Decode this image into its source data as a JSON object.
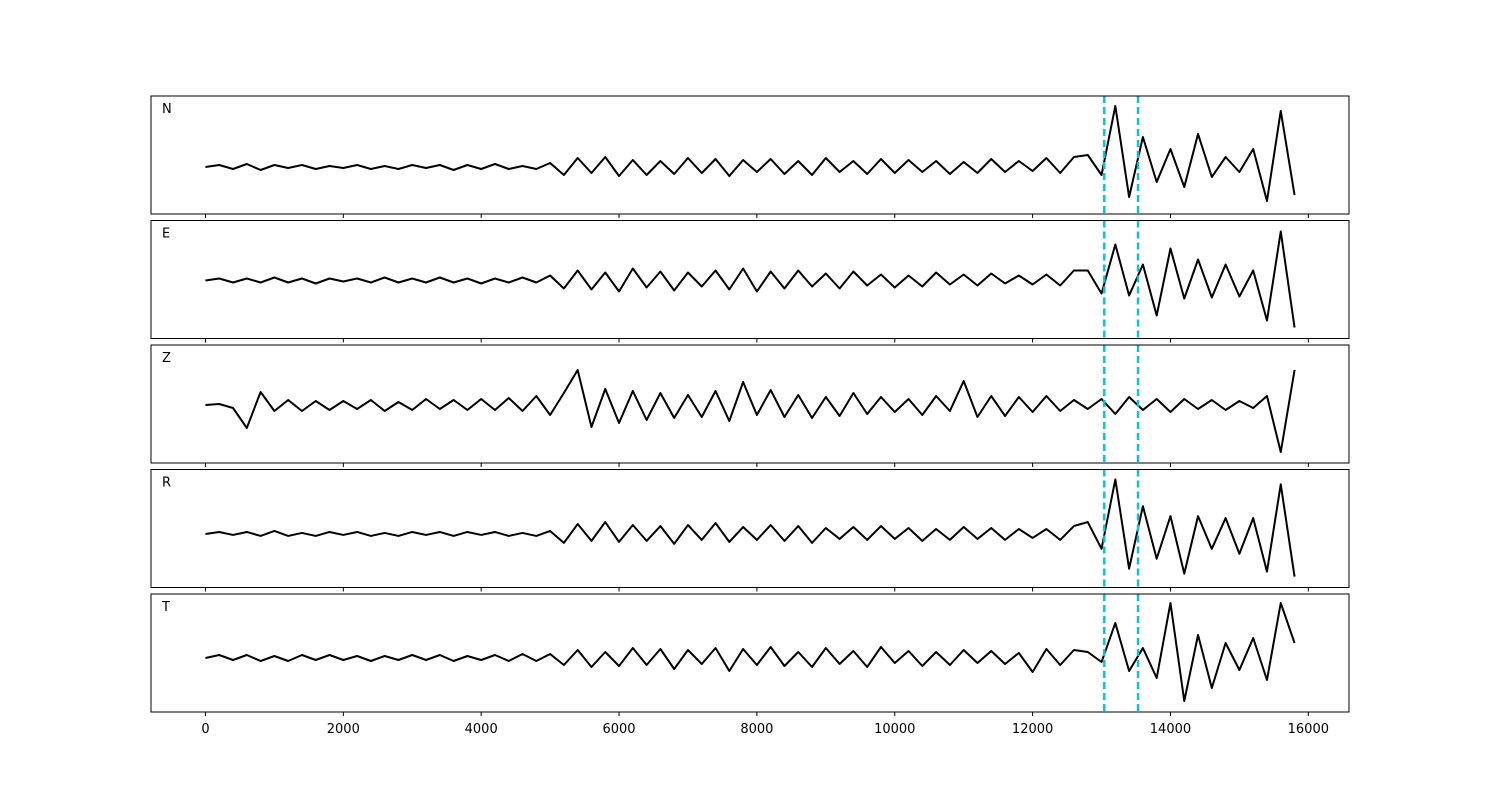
{
  "chart_data": {
    "type": "line",
    "x": [
      0,
      200,
      400,
      600,
      800,
      1000,
      1200,
      1400,
      1600,
      1800,
      2000,
      2200,
      2400,
      2600,
      2800,
      3000,
      3200,
      3400,
      3600,
      3800,
      4000,
      4200,
      4400,
      4600,
      4800,
      5000,
      5200,
      5400,
      5600,
      5800,
      6000,
      6200,
      6400,
      6600,
      6800,
      7000,
      7200,
      7400,
      7600,
      7800,
      8000,
      8200,
      8400,
      8600,
      8800,
      9000,
      9200,
      9400,
      9600,
      9800,
      10000,
      10200,
      10400,
      10600,
      10800,
      11000,
      11200,
      11400,
      11600,
      11800,
      12000,
      12200,
      12400,
      12600,
      12800,
      13000,
      13200,
      13400,
      13600,
      13800,
      14000,
      14200,
      14400,
      14600,
      14800,
      15000,
      15200,
      15400,
      15600,
      15800
    ],
    "xlim": [
      -790,
      16590
    ],
    "xticks": [
      0,
      2000,
      4000,
      6000,
      8000,
      10000,
      12000,
      14000,
      16000
    ],
    "vlines": [
      13040,
      13530
    ],
    "vline_color": "#17becf",
    "series": [
      {
        "name": "N",
        "color": "#000000",
        "ylim": [
          -4.7,
          7.1
        ],
        "values": [
          0,
          0.2,
          -0.2,
          0.3,
          -0.3,
          0.2,
          -0.1,
          0.2,
          -0.2,
          0.1,
          -0.1,
          0.2,
          -0.2,
          0.1,
          -0.2,
          0.2,
          -0.1,
          0.2,
          -0.3,
          0.2,
          -0.2,
          0.3,
          -0.2,
          0.1,
          -0.2,
          0.4,
          -0.8,
          0.9,
          -0.6,
          1.0,
          -0.9,
          0.7,
          -0.8,
          0.6,
          -0.7,
          0.9,
          -0.6,
          0.8,
          -0.9,
          0.7,
          -0.5,
          0.8,
          -0.7,
          0.6,
          -0.8,
          0.9,
          -0.5,
          0.6,
          -0.7,
          0.8,
          -0.6,
          0.7,
          -0.5,
          0.6,
          -0.7,
          0.5,
          -0.6,
          0.8,
          -0.5,
          0.6,
          -0.4,
          0.9,
          -0.6,
          1.0,
          1.2,
          -0.8,
          6.1,
          -3.0,
          3.0,
          -1.5,
          1.8,
          -2.0,
          3.3,
          -1.0,
          1.0,
          -0.5,
          1.8,
          -3.4,
          5.6,
          -2.8
        ]
      },
      {
        "name": "E",
        "color": "#000000",
        "ylim": [
          -5.8,
          6.0
        ],
        "values": [
          0,
          0.2,
          -0.2,
          0.2,
          -0.2,
          0.3,
          -0.2,
          0.2,
          -0.3,
          0.2,
          -0.1,
          0.2,
          -0.2,
          0.3,
          -0.2,
          0.2,
          -0.2,
          0.3,
          -0.2,
          0.2,
          -0.3,
          0.2,
          -0.2,
          0.3,
          -0.2,
          0.5,
          -0.8,
          1.0,
          -0.9,
          0.8,
          -1.1,
          1.2,
          -0.7,
          0.9,
          -1.0,
          0.8,
          -0.6,
          1.0,
          -0.9,
          1.2,
          -1.1,
          0.9,
          -0.8,
          1.0,
          -0.6,
          0.7,
          -0.8,
          0.9,
          -0.5,
          0.6,
          -0.7,
          0.5,
          -0.6,
          0.8,
          -0.4,
          0.6,
          -0.5,
          0.7,
          -0.3,
          0.5,
          -0.4,
          0.6,
          -0.5,
          1.0,
          1.0,
          -1.3,
          3.6,
          -1.5,
          1.6,
          -3.5,
          3.2,
          -1.8,
          2.1,
          -1.7,
          1.6,
          -1.6,
          1.0,
          -4.0,
          4.9,
          -4.7
        ]
      },
      {
        "name": "Z",
        "color": "#000000",
        "ylim": [
          -5.8,
          6.0
        ],
        "values": [
          0,
          0.1,
          -0.3,
          -2.3,
          1.3,
          -0.6,
          0.5,
          -0.6,
          0.4,
          -0.5,
          0.4,
          -0.4,
          0.5,
          -0.6,
          0.3,
          -0.5,
          0.6,
          -0.4,
          0.5,
          -0.5,
          0.6,
          -0.5,
          0.7,
          -0.6,
          0.9,
          -1.0,
          1.2,
          3.5,
          -2.2,
          1.6,
          -1.8,
          1.4,
          -1.5,
          1.2,
          -1.3,
          1.0,
          -1.2,
          1.4,
          -1.6,
          2.3,
          -1.0,
          1.5,
          -1.2,
          1.0,
          -1.3,
          0.8,
          -1.1,
          1.2,
          -0.9,
          0.8,
          -0.7,
          0.6,
          -1.0,
          0.9,
          -0.6,
          2.4,
          -1.2,
          0.9,
          -1.1,
          0.8,
          -0.7,
          0.9,
          -0.6,
          0.5,
          -0.4,
          0.6,
          -0.9,
          0.8,
          -0.5,
          0.6,
          -0.7,
          0.6,
          -0.4,
          0.5,
          -0.5,
          0.4,
          -0.3,
          0.9,
          -4.7,
          3.5
        ]
      },
      {
        "name": "R",
        "color": "#000000",
        "ylim": [
          -5.4,
          6.5
        ],
        "values": [
          0,
          0.2,
          -0.1,
          0.2,
          -0.2,
          0.3,
          -0.2,
          0.1,
          -0.2,
          0.2,
          -0.1,
          0.2,
          -0.2,
          0.1,
          -0.2,
          0.2,
          -0.1,
          0.2,
          -0.2,
          0.2,
          -0.1,
          0.2,
          -0.2,
          0.1,
          -0.2,
          0.3,
          -0.9,
          1.0,
          -0.7,
          1.2,
          -0.8,
          0.9,
          -0.7,
          0.8,
          -1.0,
          0.9,
          -0.6,
          1.1,
          -0.8,
          0.7,
          -0.6,
          0.9,
          -0.7,
          0.8,
          -0.9,
          0.6,
          -0.5,
          0.7,
          -0.6,
          0.8,
          -0.5,
          0.6,
          -0.7,
          0.5,
          -0.6,
          0.7,
          -0.5,
          0.6,
          -0.6,
          0.5,
          -0.4,
          0.5,
          -0.6,
          0.8,
          1.2,
          -1.5,
          5.5,
          -3.5,
          2.8,
          -2.5,
          1.8,
          -4.0,
          1.8,
          -1.5,
          1.6,
          -2.0,
          1.6,
          -3.8,
          5.0,
          -4.3
        ]
      },
      {
        "name": "T",
        "color": "#000000",
        "ylim": [
          -5.4,
          6.4
        ],
        "values": [
          0,
          0.3,
          -0.2,
          0.3,
          -0.3,
          0.2,
          -0.3,
          0.3,
          -0.2,
          0.3,
          -0.2,
          0.2,
          -0.3,
          0.2,
          -0.2,
          0.3,
          -0.2,
          0.3,
          -0.3,
          0.2,
          -0.2,
          0.3,
          -0.3,
          0.4,
          -0.3,
          0.4,
          -0.7,
          0.8,
          -0.9,
          0.6,
          -0.8,
          1.0,
          -0.7,
          0.9,
          -1.1,
          0.8,
          -0.6,
          1.0,
          -1.3,
          0.9,
          -0.7,
          1.1,
          -0.8,
          0.6,
          -0.9,
          1.0,
          -0.6,
          0.7,
          -0.9,
          1.1,
          -0.5,
          0.7,
          -0.8,
          0.6,
          -0.7,
          0.8,
          -0.5,
          0.7,
          -0.6,
          0.5,
          -1.4,
          0.9,
          -0.7,
          0.8,
          0.6,
          -0.4,
          3.5,
          -1.3,
          1.0,
          -2.0,
          5.5,
          -4.3,
          2.3,
          -3.0,
          1.5,
          -1.2,
          2.0,
          -2.2,
          5.5,
          1.5
        ]
      }
    ]
  }
}
